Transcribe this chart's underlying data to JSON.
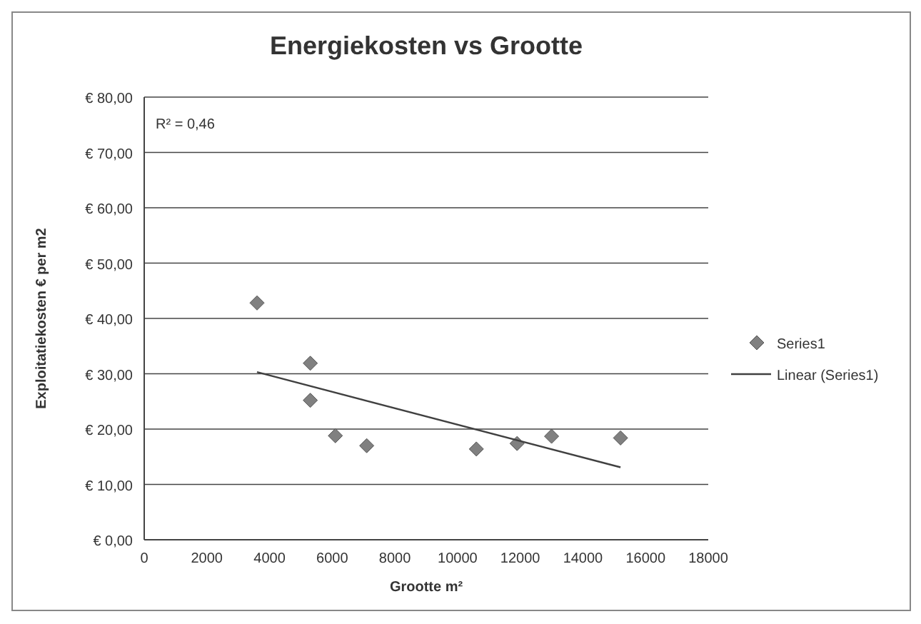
{
  "chart_data": {
    "type": "scatter",
    "title": "Energiekosten vs Grootte",
    "xlabel": "Grootte m²",
    "ylabel": "Exploitatiekosten € per m2",
    "annotations": [
      "R² = 0,46"
    ],
    "xlim": [
      0,
      18000
    ],
    "xticks": [
      0,
      2000,
      4000,
      6000,
      8000,
      10000,
      12000,
      14000,
      16000,
      18000
    ],
    "ylim": [
      0,
      80
    ],
    "yticks": [
      {
        "value": 0,
        "label": "€ 0,00"
      },
      {
        "value": 10,
        "label": "€ 10,00"
      },
      {
        "value": 20,
        "label": "€ 20,00"
      },
      {
        "value": 30,
        "label": "€ 30,00"
      },
      {
        "value": 40,
        "label": "€ 40,00"
      },
      {
        "value": 50,
        "label": "€ 50,00"
      },
      {
        "value": 60,
        "label": "€ 60,00"
      },
      {
        "value": 70,
        "label": "€ 70,00"
      },
      {
        "value": 80,
        "label": "€ 80,00"
      }
    ],
    "grid": "y",
    "legend": "right",
    "series": [
      {
        "name": "Series1",
        "marker": "diamond",
        "color": "#808080",
        "x": [
          3600,
          5300,
          5300,
          6100,
          7100,
          10600,
          11900,
          13000,
          15200
        ],
        "values": [
          42.8,
          31.9,
          25.2,
          18.8,
          17.0,
          16.4,
          17.4,
          18.7,
          18.4
        ]
      },
      {
        "name": "Linear (Series1)",
        "type": "line",
        "marker": "none",
        "color": "#404040",
        "x": [
          3600,
          15200
        ],
        "values": [
          30.3,
          13.1
        ]
      }
    ]
  }
}
